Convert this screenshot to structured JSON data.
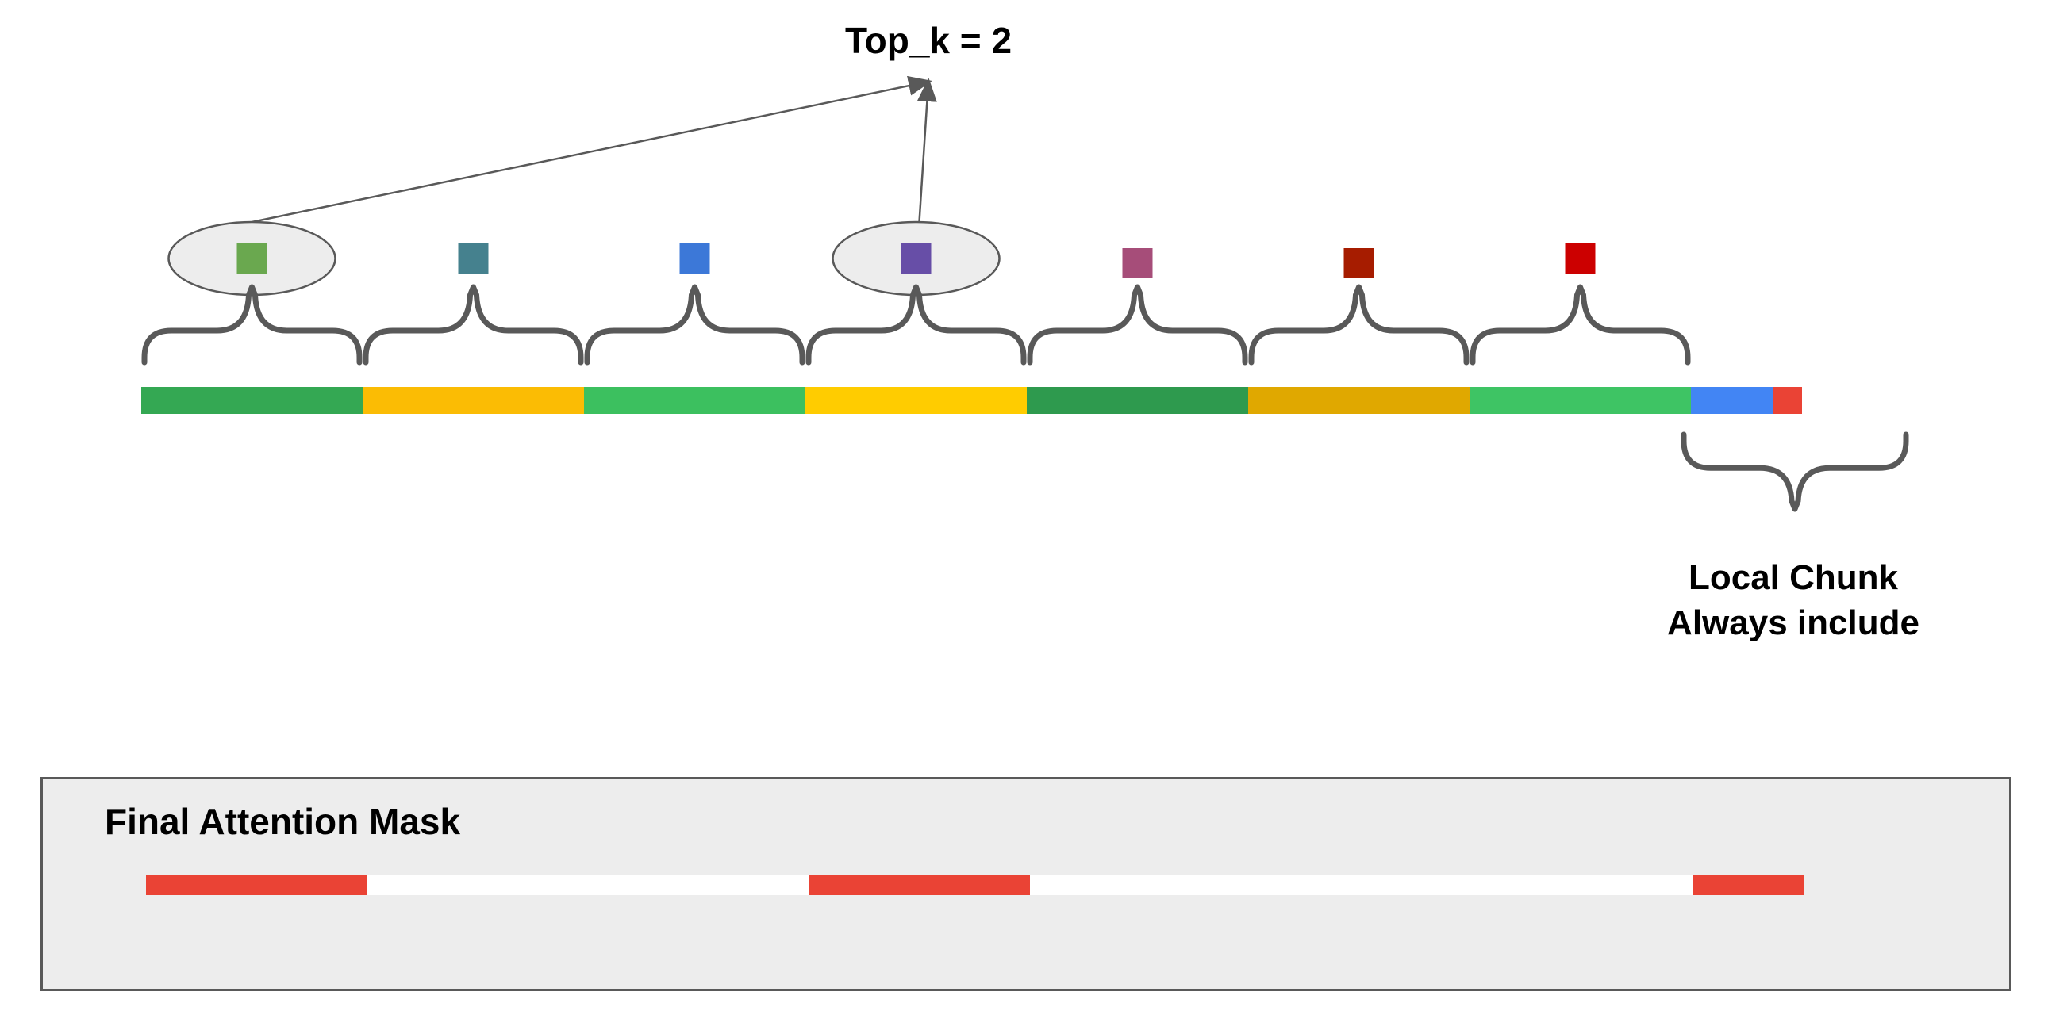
{
  "labels": {
    "top_k": "Top_k = 2",
    "local_chunk_line1": "Local Chunk",
    "local_chunk_line2": "Always include",
    "final_mask": "Final Attention Mask"
  },
  "diagram": {
    "chunks": [
      {
        "bar_color": "#34a853",
        "rep_color": "#6aa84f",
        "selected": true
      },
      {
        "bar_color": "#fbbc04",
        "rep_color": "#45818e",
        "selected": false
      },
      {
        "bar_color": "#3cc05f",
        "rep_color": "#3c78d8",
        "selected": false
      },
      {
        "bar_color": "#ffcc00",
        "rep_color": "#674ea7",
        "selected": true
      },
      {
        "bar_color": "#2e9a4e",
        "rep_color": "#a64d79",
        "selected": false
      },
      {
        "bar_color": "#e0a800",
        "rep_color": "#a61c00",
        "selected": false
      },
      {
        "bar_color": "#3ec464",
        "rep_color": "#cc0000",
        "selected": false
      }
    ],
    "local_chunk_colors": [
      "#4285f4",
      "#ea4335"
    ],
    "mask_on_color": "#ea4335",
    "mask_off_color": "#ffffff",
    "brace_color": "#595959",
    "highlight_fill": "#ededed"
  }
}
